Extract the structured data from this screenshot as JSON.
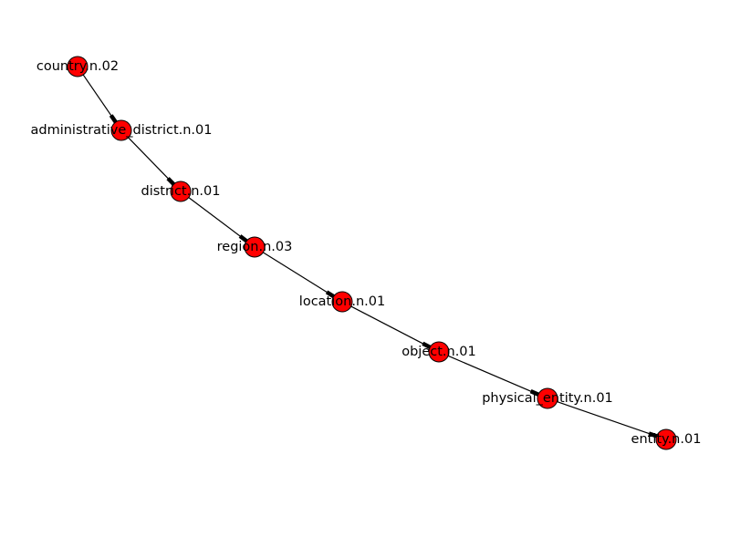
{
  "colors": {
    "node_fill": "#ff0000",
    "node_stroke": "#000000",
    "edge": "#000000",
    "label": "#000000",
    "background": "#ffffff"
  },
  "graph": {
    "directed": true,
    "nodes": [
      {
        "id": "country.n.02",
        "label": "country.n.02"
      },
      {
        "id": "administrative_district.n.01",
        "label": "administrative_district.n.01"
      },
      {
        "id": "district.n.01",
        "label": "district.n.01"
      },
      {
        "id": "region.n.03",
        "label": "region.n.03"
      },
      {
        "id": "location.n.01",
        "label": "location.n.01"
      },
      {
        "id": "object.n.01",
        "label": "object.n.01"
      },
      {
        "id": "physical_entity.n.01",
        "label": "physical_entity.n.01"
      },
      {
        "id": "entity.n.01",
        "label": "entity.n.01"
      }
    ],
    "edges": [
      {
        "source": "country.n.02",
        "target": "administrative_district.n.01"
      },
      {
        "source": "administrative_district.n.01",
        "target": "district.n.01"
      },
      {
        "source": "district.n.01",
        "target": "region.n.03"
      },
      {
        "source": "region.n.03",
        "target": "location.n.01"
      },
      {
        "source": "location.n.01",
        "target": "object.n.01"
      },
      {
        "source": "object.n.01",
        "target": "physical_entity.n.01"
      },
      {
        "source": "physical_entity.n.01",
        "target": "entity.n.01"
      }
    ]
  }
}
